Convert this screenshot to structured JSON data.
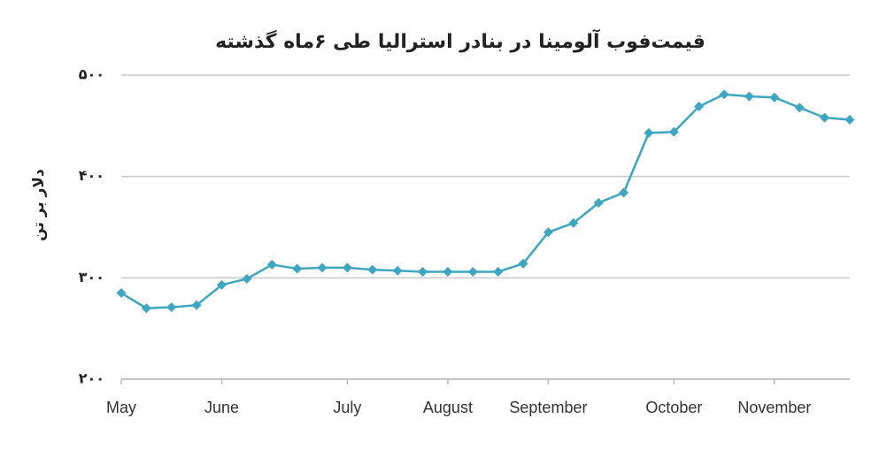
{
  "chart_data": {
    "type": "line",
    "title": "قیمت‌فوب آلومینا در بنادر استرالیا طی ۶ماه گذشته",
    "y_label": "دلار بر تن",
    "categories": [
      "May",
      null,
      null,
      null,
      "June",
      null,
      null,
      null,
      null,
      "July",
      null,
      null,
      null,
      "August",
      null,
      null,
      null,
      "September",
      null,
      null,
      null,
      null,
      "October",
      null,
      null,
      null,
      "November",
      null,
      null,
      null
    ],
    "series": [
      {
        "name": "FOB",
        "color": "#3ea6c0",
        "values": [
          285,
          270,
          271,
          273,
          293,
          299,
          313,
          309,
          310,
          310,
          308,
          307,
          306,
          306,
          306,
          306,
          314,
          345,
          354,
          374,
          384,
          443,
          444,
          469,
          481,
          479,
          478,
          468,
          458,
          456
        ]
      }
    ],
    "ylim": [
      200,
      500
    ],
    "yticks": [
      {
        "value": 200,
        "label": "۲۰۰"
      },
      {
        "value": 300,
        "label": "۳۰۰"
      },
      {
        "value": 400,
        "label": "۴۰۰"
      },
      {
        "value": 500,
        "label": "۵۰۰"
      }
    ],
    "grid": true
  }
}
